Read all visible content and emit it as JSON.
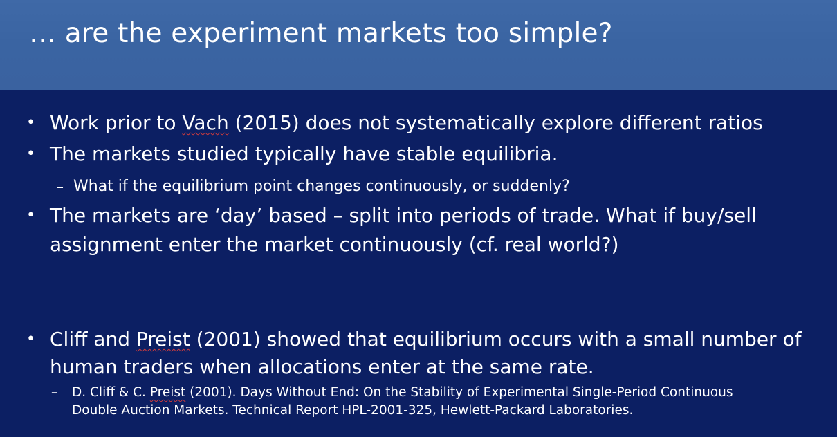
{
  "slide": {
    "title": "… are the experiment markets too simple?",
    "bullets": {
      "b1": {
        "marker": "•",
        "pre": "Work prior to ",
        "name": "Vach",
        "post": " (2015) does not systematically explore different ratios"
      },
      "b2": {
        "marker": "•",
        "text": "The markets studied typically have stable equilibria."
      },
      "b2_sub": {
        "marker": "–",
        "text": "What if the equilibrium point changes continuously, or suddenly?"
      },
      "b3": {
        "marker": "•",
        "line1": "The markets are ‘day’ based – split into periods of trade. What if buy/sell",
        "line2": "assignment enter the market continuously (cf. real world?)"
      },
      "b4": {
        "marker": "•",
        "pre": "Cliff and ",
        "name": "Preist",
        "post": " (2001) showed that equilibrium occurs with a small number of",
        "line2": "human traders when allocations enter at the same rate."
      },
      "b4_sub": {
        "marker": "–",
        "pre": "D. Cliff & C. ",
        "name": "Preist",
        "post": " (2001). Days Without End: On the Stability of Experimental Single-Period Continuous",
        "line2": "Double Auction Markets. Technical Report HPL-2001-325, Hewlett-Packard Laboratories."
      }
    }
  }
}
